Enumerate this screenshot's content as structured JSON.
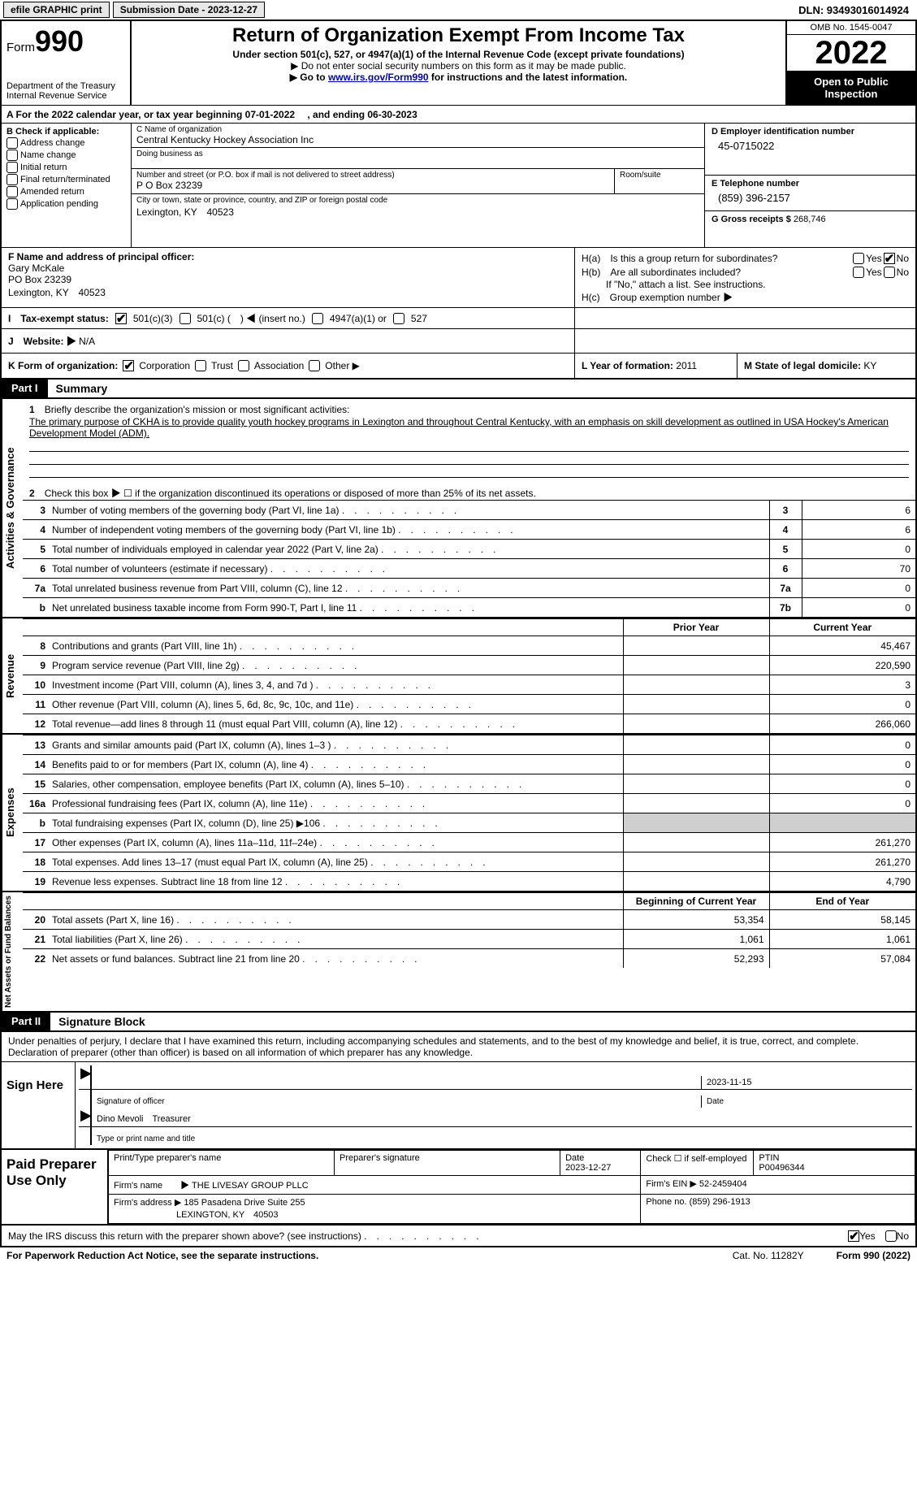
{
  "topbar": {
    "efile": "efile GRAPHIC print",
    "submission": "Submission Date - 2023-12-27",
    "dln": "DLN: 93493016014924"
  },
  "header": {
    "form_label": "Form",
    "form_number": "990",
    "dept": "Department of the Treasury Internal Revenue Service",
    "title": "Return of Organization Exempt From Income Tax",
    "sub1": "Under section 501(c), 527, or 4947(a)(1) of the Internal Revenue Code (except private foundations)",
    "sub2": "▶ Do not enter social security numbers on this form as it may be made public.",
    "sub3_pre": "▶ Go to ",
    "sub3_link": "www.irs.gov/Form990",
    "sub3_post": " for instructions and the latest information.",
    "omb": "OMB No. 1545-0047",
    "year": "2022",
    "open": "Open to Public Inspection"
  },
  "row_a": "A For the 2022 calendar year, or tax year beginning 07-01-2022　 , and ending 06-30-2023",
  "box_b": {
    "title": "B Check if applicable:",
    "items": [
      "Address change",
      "Name change",
      "Initial return",
      "Final return/terminated",
      "Amended return",
      "Application pending"
    ]
  },
  "box_c": {
    "name_lbl": "C Name of organization",
    "name": "Central Kentucky Hockey Association Inc",
    "dba_lbl": "Doing business as",
    "dba": "",
    "addr_lbl": "Number and street (or P.O. box if mail is not delivered to street address)",
    "room_lbl": "Room/suite",
    "addr": "P O Box 23239",
    "city_lbl": "City or town, state or province, country, and ZIP or foreign postal code",
    "city": "Lexington, KY　40523"
  },
  "box_d": {
    "ein_lbl": "D Employer identification number",
    "ein": "45-0715022",
    "phone_lbl": "E Telephone number",
    "phone": "(859) 396-2157",
    "gross_lbl": "G Gross receipts $",
    "gross": "268,746"
  },
  "box_f": {
    "lbl": "F Name and address of principal officer:",
    "name": "Gary McKale",
    "addr1": "PO Box 23239",
    "addr2": "Lexington, KY　40523"
  },
  "box_h": {
    "a_lbl": "H(a)　Is this a group return for subordinates?",
    "b_lbl": "H(b)　Are all subordinates included?",
    "note": "If \"No,\" attach a list. See instructions.",
    "c_lbl": "H(c)　Group exemption number ▶"
  },
  "row_i": {
    "lbl": "I　Tax-exempt status:",
    "opt1": "501(c)(3)",
    "opt2": "501(c) (　) ◀ (insert no.)",
    "opt3": "4947(a)(1) or",
    "opt4": "527"
  },
  "row_j": {
    "lbl": "J　Website: ▶",
    "val": "N/A"
  },
  "row_k": {
    "lbl": "K Form of organization:",
    "opts": [
      "Corporation",
      "Trust",
      "Association",
      "Other ▶"
    ],
    "l_lbl": "L Year of formation:",
    "l_val": "2011",
    "m_lbl": "M State of legal domicile:",
    "m_val": "KY"
  },
  "parts": {
    "p1_tag": "Part I",
    "p1_title": "Summary",
    "p2_tag": "Part II",
    "p2_title": "Signature Block"
  },
  "vtabs": {
    "ag": "Activities & Governance",
    "rev": "Revenue",
    "exp": "Expenses",
    "na": "Net Assets or Fund Balances"
  },
  "summary": {
    "line1_lbl": "Briefly describe the organization's mission or most significant activities:",
    "line1_txt": "The primary purpose of CKHA is to provide quality youth hockey programs in Lexington and throughout Central Kentucky, with an emphasis on skill development as outlined in USA Hockey's American Development Model (ADM).",
    "line2": "Check this box ▶ ☐ if the organization discontinued its operations or disposed of more than 25% of its net assets.",
    "rows_ag": [
      {
        "n": "3",
        "d": "Number of voting members of the governing body (Part VI, line 1a)",
        "box": "3",
        "v": "6"
      },
      {
        "n": "4",
        "d": "Number of independent voting members of the governing body (Part VI, line 1b)",
        "box": "4",
        "v": "6"
      },
      {
        "n": "5",
        "d": "Total number of individuals employed in calendar year 2022 (Part V, line 2a)",
        "box": "5",
        "v": "0"
      },
      {
        "n": "6",
        "d": "Total number of volunteers (estimate if necessary)",
        "box": "6",
        "v": "70"
      },
      {
        "n": "7a",
        "d": "Total unrelated business revenue from Part VIII, column (C), line 12",
        "box": "7a",
        "v": "0"
      },
      {
        "n": "b",
        "d": "Net unrelated business taxable income from Form 990-T, Part I, line 11",
        "box": "7b",
        "v": "0"
      }
    ],
    "hdr_prior": "Prior Year",
    "hdr_curr": "Current Year",
    "rows_rev": [
      {
        "n": "8",
        "d": "Contributions and grants (Part VIII, line 1h)",
        "p": "",
        "c": "45,467"
      },
      {
        "n": "9",
        "d": "Program service revenue (Part VIII, line 2g)",
        "p": "",
        "c": "220,590"
      },
      {
        "n": "10",
        "d": "Investment income (Part VIII, column (A), lines 3, 4, and 7d )",
        "p": "",
        "c": "3"
      },
      {
        "n": "11",
        "d": "Other revenue (Part VIII, column (A), lines 5, 6d, 8c, 9c, 10c, and 11e)",
        "p": "",
        "c": "0"
      },
      {
        "n": "12",
        "d": "Total revenue—add lines 8 through 11 (must equal Part VIII, column (A), line 12)",
        "p": "",
        "c": "266,060"
      }
    ],
    "rows_exp": [
      {
        "n": "13",
        "d": "Grants and similar amounts paid (Part IX, column (A), lines 1–3 )",
        "p": "",
        "c": "0"
      },
      {
        "n": "14",
        "d": "Benefits paid to or for members (Part IX, column (A), line 4)",
        "p": "",
        "c": "0"
      },
      {
        "n": "15",
        "d": "Salaries, other compensation, employee benefits (Part IX, column (A), lines 5–10)",
        "p": "",
        "c": "0"
      },
      {
        "n": "16a",
        "d": "Professional fundraising fees (Part IX, column (A), line 11e)",
        "p": "",
        "c": "0"
      },
      {
        "n": "b",
        "d": "Total fundraising expenses (Part IX, column (D), line 25) ▶106",
        "p": "shade",
        "c": "shade"
      },
      {
        "n": "17",
        "d": "Other expenses (Part IX, column (A), lines 11a–11d, 11f–24e)",
        "p": "",
        "c": "261,270"
      },
      {
        "n": "18",
        "d": "Total expenses. Add lines 13–17 (must equal Part IX, column (A), line 25)",
        "p": "",
        "c": "261,270"
      },
      {
        "n": "19",
        "d": "Revenue less expenses. Subtract line 18 from line 12",
        "p": "",
        "c": "4,790"
      }
    ],
    "hdr_beg": "Beginning of Current Year",
    "hdr_end": "End of Year",
    "rows_na": [
      {
        "n": "20",
        "d": "Total assets (Part X, line 16)",
        "p": "53,354",
        "c": "58,145"
      },
      {
        "n": "21",
        "d": "Total liabilities (Part X, line 26)",
        "p": "1,061",
        "c": "1,061"
      },
      {
        "n": "22",
        "d": "Net assets or fund balances. Subtract line 21 from line 20",
        "p": "52,293",
        "c": "57,084"
      }
    ]
  },
  "sig": {
    "decl": "Under penalties of perjury, I declare that I have examined this return, including accompanying schedules and statements, and to the best of my knowledge and belief, it is true, correct, and complete. Declaration of preparer (other than officer) is based on all information of which preparer has any knowledge.",
    "sign_here": "Sign Here",
    "sig_officer": "Signature of officer",
    "date_lbl": "Date",
    "date": "2023-11-15",
    "name_title": "Dino Mevoli　Treasurer",
    "type_lbl": "Type or print name and title"
  },
  "prep": {
    "title": "Paid Preparer Use Only",
    "name_lbl": "Print/Type preparer's name",
    "sig_lbl": "Preparer's signature",
    "date_lbl": "Date",
    "date": "2023-12-27",
    "check_lbl": "Check ☐ if self-employed",
    "ptin_lbl": "PTIN",
    "ptin": "P00496344",
    "firm_name_lbl": "Firm's name　　▶",
    "firm_name": "THE LIVESAY GROUP PLLC",
    "firm_ein_lbl": "Firm's EIN ▶",
    "firm_ein": "52-2459404",
    "firm_addr_lbl": "Firm's address ▶",
    "firm_addr1": "185 Pasadena Drive Suite 255",
    "firm_addr2": "LEXINGTON, KY　40503",
    "phone_lbl": "Phone no.",
    "phone": "(859) 296-1913"
  },
  "final": {
    "q": "May the IRS discuss this return with the preparer shown above? (see instructions)",
    "yes": "Yes",
    "no": "No"
  },
  "footer": {
    "l": "For Paperwork Reduction Act Notice, see the separate instructions.",
    "m": "Cat. No. 11282Y",
    "r": "Form 990 (2022)"
  }
}
